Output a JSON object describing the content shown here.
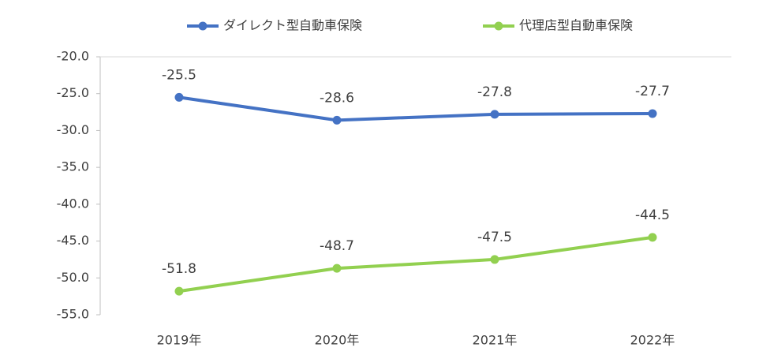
{
  "chart_data": {
    "type": "line",
    "categories": [
      "2019年",
      "2020年",
      "2021年",
      "2022年"
    ],
    "series": [
      {
        "name": "ダイレクト型自動車保険",
        "color": "#4472c4",
        "values": [
          -25.5,
          -28.6,
          -27.8,
          -27.7
        ]
      },
      {
        "name": "代理店型自動車保険",
        "color": "#92d050",
        "values": [
          -51.8,
          -48.7,
          -47.5,
          -44.5
        ]
      }
    ],
    "ylim": [
      -55,
      -20
    ],
    "yticks": [
      {
        "value": -55,
        "label": "-55.0"
      },
      {
        "value": -50,
        "label": "-50.0"
      },
      {
        "value": -45,
        "label": "-45.0"
      },
      {
        "value": -40,
        "label": "-40.0"
      },
      {
        "value": -35,
        "label": "-35.0"
      },
      {
        "value": -30,
        "label": "-30.0"
      },
      {
        "value": -25,
        "label": "-25.0"
      },
      {
        "value": -20,
        "label": "-20.0"
      }
    ]
  }
}
